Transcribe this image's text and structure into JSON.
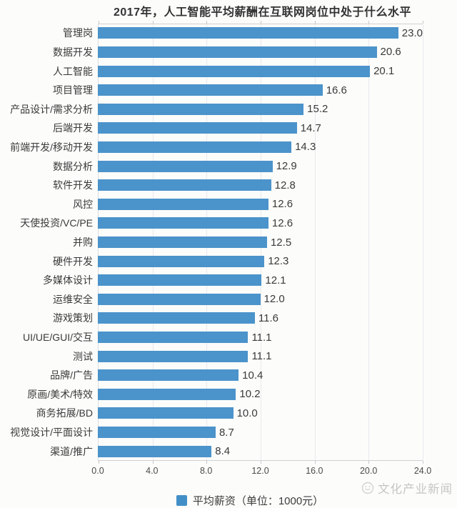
{
  "title": "2017年，人工智能平均薪酬在互联网岗位中处于什么水平",
  "chart_data": {
    "type": "bar",
    "orientation": "horizontal",
    "title": "2017年，人工智能平均薪酬在互联网岗位中处于什么水平",
    "categories": [
      "管理岗",
      "数据开发",
      "人工智能",
      "项目管理",
      "产品设计/需求分析",
      "后端开发",
      "前端开发/移动开发",
      "数据分析",
      "软件开发",
      "风控",
      "天使投资/VC/PE",
      "并购",
      "硬件开发",
      "多媒体设计",
      "运维安全",
      "游戏策划",
      "UI/UE/GUI/交互",
      "测试",
      "品牌/广告",
      "原画/美术/特效",
      "商务拓展/BD",
      "视觉设计/平面设计",
      "渠道/推广"
    ],
    "values": [
      23.0,
      20.6,
      20.1,
      16.6,
      15.2,
      14.7,
      14.3,
      12.9,
      12.8,
      12.6,
      12.6,
      12.5,
      12.3,
      12.1,
      12.0,
      11.6,
      11.1,
      11.1,
      10.4,
      10.2,
      10.0,
      8.7,
      8.4
    ],
    "x_ticks": [
      "0.0",
      "4.0",
      "8.0",
      "12.0",
      "16.0",
      "20.0",
      "24.0"
    ],
    "xlim": [
      0,
      24
    ],
    "grid": true,
    "bar_color": "#4b93cb",
    "legend": {
      "label": "平均薪资（单位：1000元）",
      "position": "bottom",
      "swatch_color": "#428fc7"
    }
  },
  "watermark": {
    "logo_icon": "publisher-circle-logo",
    "text": "文化产业新闻",
    "color": "#c6c6c6"
  }
}
